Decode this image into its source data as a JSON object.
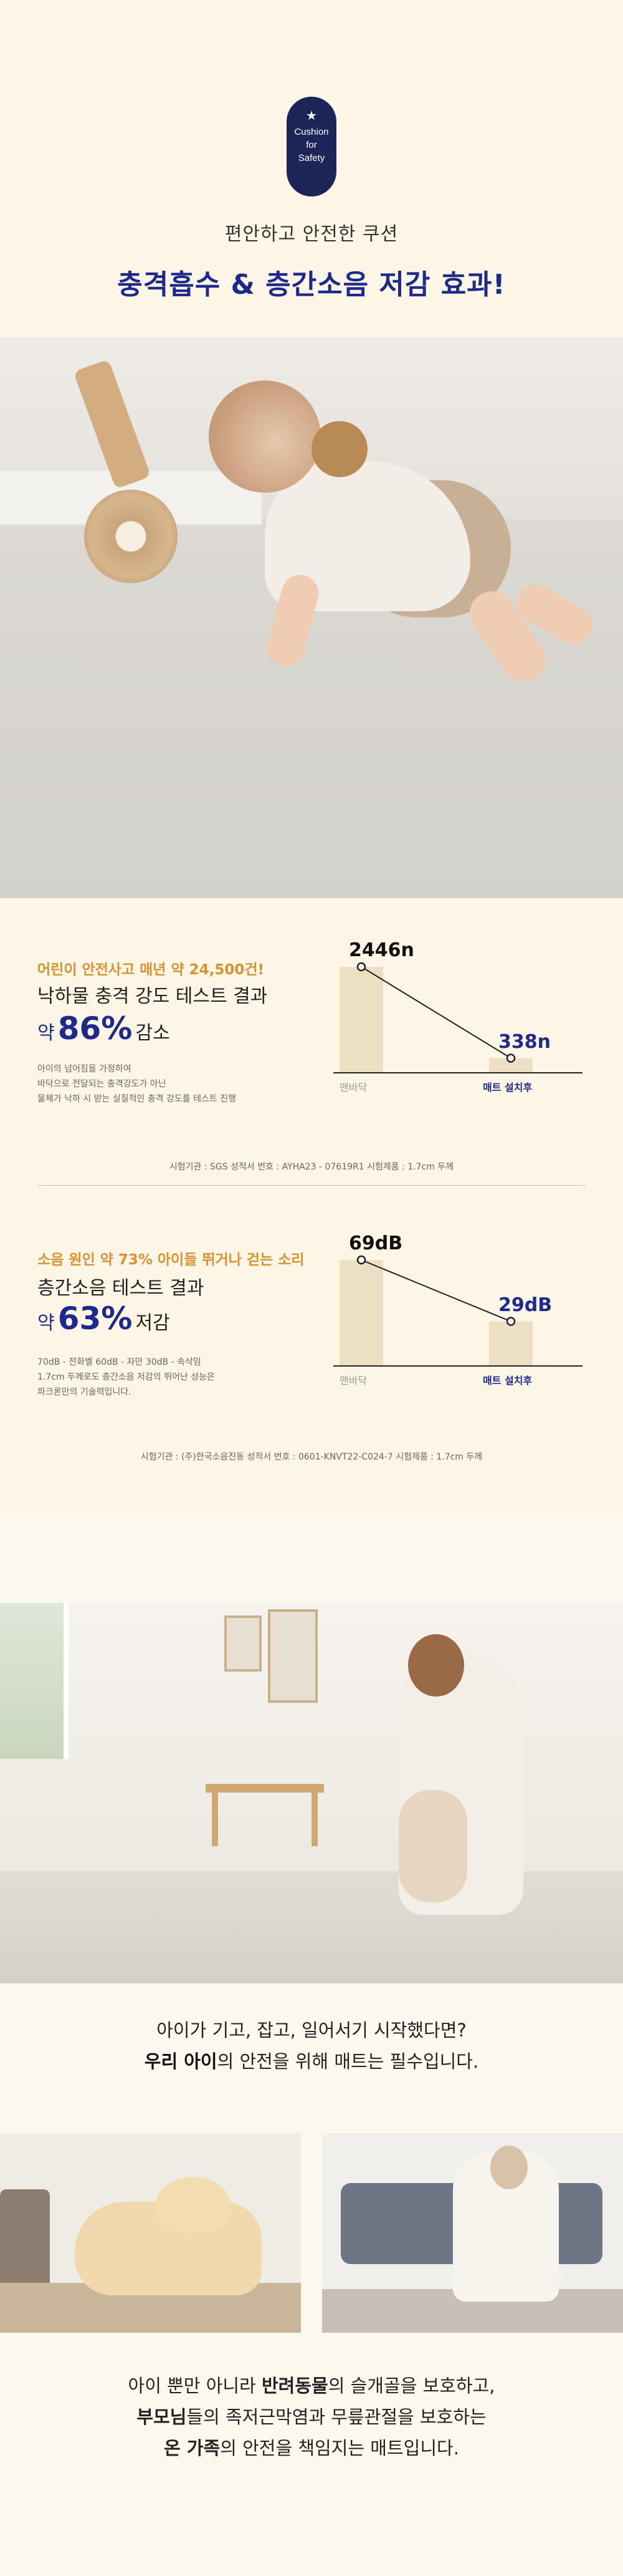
{
  "header": {
    "badge_lines": [
      "Cushion",
      "for",
      "Safety"
    ],
    "subtitle": "편안하고 안전한 쿠션",
    "title": "충격흡수 & 층간소음 저감 효과!"
  },
  "test_impact": {
    "highlight": "어린이 안전사고 매년 약 24,500건!",
    "title": "낙하물 충격 강도 테스트 결과",
    "percent_prefix": "약",
    "percent_value": "86%",
    "percent_suffix": "감소",
    "description": [
      "아이의 넘어짐을 가정하여",
      "바닥으로 전달되는 충격강도가 아닌",
      "물체가 낙하 시 받는 실질적인 충격 강도를 테스트 진행"
    ],
    "source": "시험기관 : SGS    성적서 번호 : AYHA23 - 07619R1    시험제품 : 1.7cm 두께"
  },
  "test_noise": {
    "highlight": "소음 원인 약 73% 아이들 뛰거나 걷는 소리",
    "title": "층간소음 테스트 결과",
    "percent_prefix": "약",
    "percent_value": "63%",
    "percent_suffix": "저감",
    "description": [
      "70dB - 전화벨    60dB - 자만    30dB - 속삭임",
      "1.7cm 두께로도 층간소음 저감의 뛰어난 성능은",
      "파크론만의 기술력입니다."
    ],
    "source": "시험기관 : (주)한국소음진동    성적서 번호 : 0601-KNVT22-C024-7    시험제품 : 1.7cm 두께"
  },
  "chart_data": [
    {
      "type": "bar",
      "categories": [
        "맨바닥",
        "매트 설치후"
      ],
      "values": [
        2446,
        338
      ],
      "value_labels": [
        "2446n",
        "338n"
      ],
      "ylim": [
        0,
        2446
      ],
      "colors": [
        "#ecdfc3",
        "#ecdfc3"
      ],
      "highlight_color": "#1d2a8c",
      "title": "",
      "xlabel": "",
      "ylabel": ""
    },
    {
      "type": "bar",
      "categories": [
        "맨바닥",
        "매트 설치후"
      ],
      "values": [
        69,
        29
      ],
      "value_labels": [
        "69dB",
        "29dB"
      ],
      "ylim": [
        0,
        69
      ],
      "colors": [
        "#ecdfc3",
        "#ecdfc3"
      ],
      "highlight_color": "#1d2a8c",
      "title": "",
      "xlabel": "",
      "ylabel": ""
    }
  ],
  "mid_text": {
    "line1": "아이가 기고, 잡고, 일어서기 시작했다면?",
    "line2_bold": "우리 아이",
    "line2_rest": "의 안전을 위해 매트는 필수입니다."
  },
  "end_text": {
    "line1_a": "아이 뿐만 아니라 ",
    "line1_b": "반려동물",
    "line1_c": "의 슬개골을 보호하고,",
    "line2_a": "부모님",
    "line2_b": "들의 족저근막염과 무릎관절을 보호하는",
    "line3_a": "온 가족",
    "line3_b": "의 안전을 책임지는 매트입니다."
  },
  "colors": {
    "navy": "#1d2a8c",
    "badge_navy": "#1d2558",
    "orange": "#d8922f",
    "cream": "#fdf5e6",
    "bar_beige": "#ecdfc3"
  }
}
